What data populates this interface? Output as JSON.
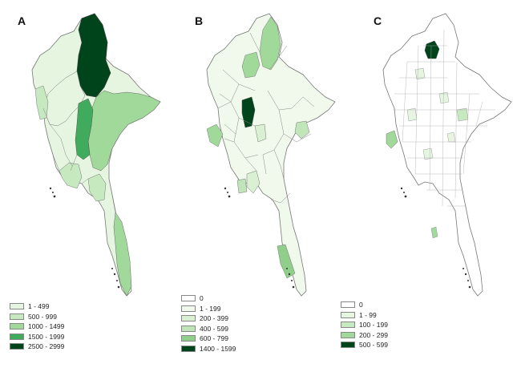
{
  "panels": [
    {
      "label": "A",
      "legend": [
        {
          "range": "1 - 499",
          "color": "#e5f5e0"
        },
        {
          "range": "500 - 999",
          "color": "#c7e9c0"
        },
        {
          "range": "1000 - 1499",
          "color": "#a1d99b"
        },
        {
          "range": "1500 - 1999",
          "color": "#41ab5d"
        },
        {
          "range": "2500 - 2999",
          "color": "#00441b"
        }
      ]
    },
    {
      "label": "B",
      "legend": [
        {
          "range": "0",
          "color": "#ffffff"
        },
        {
          "range": "1 - 199",
          "color": "#f0f9ec"
        },
        {
          "range": "200 - 399",
          "color": "#d9f0d3"
        },
        {
          "range": "400 - 599",
          "color": "#bfe5b8"
        },
        {
          "range": "600 - 799",
          "color": "#8fcf8a"
        },
        {
          "range": "1400 - 1599",
          "color": "#00441b"
        }
      ]
    },
    {
      "label": "C",
      "legend": [
        {
          "range": "0",
          "color": "#ffffff"
        },
        {
          "range": "1 - 99",
          "color": "#e5f5e0"
        },
        {
          "range": "100 - 199",
          "color": "#c7e9c0"
        },
        {
          "range": "200 - 299",
          "color": "#a1d99b"
        },
        {
          "range": "500 - 599",
          "color": "#00441b"
        }
      ]
    }
  ]
}
